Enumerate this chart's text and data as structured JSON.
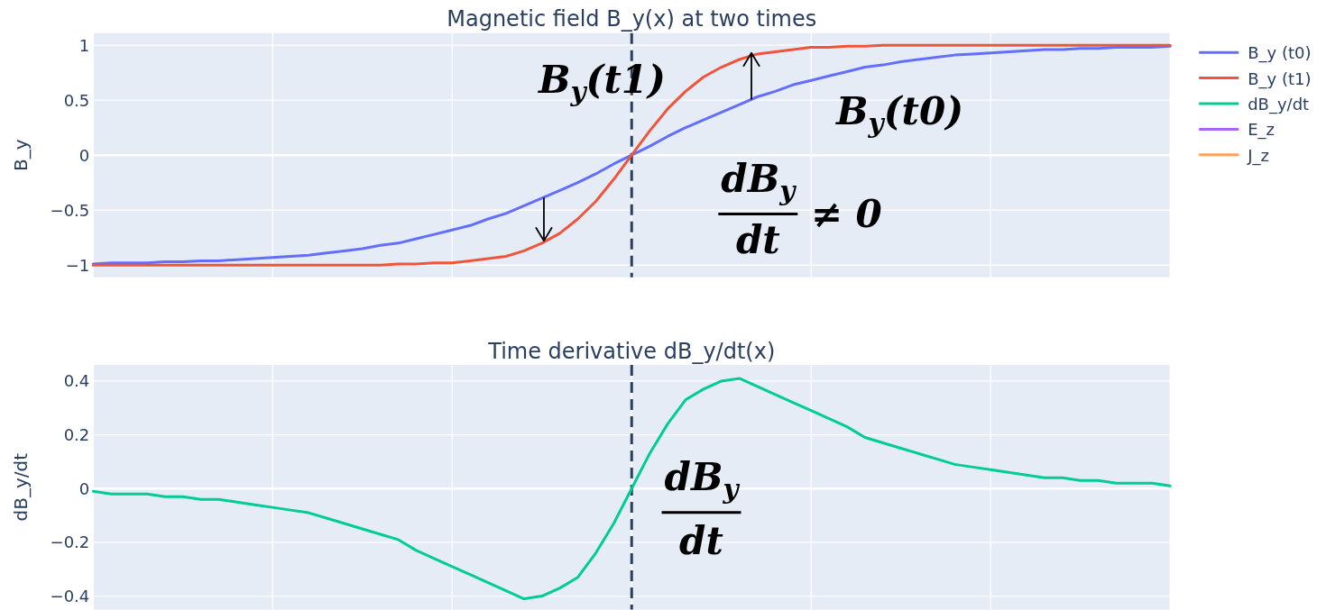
{
  "chart_data": [
    {
      "type": "line",
      "title": "Magnetic field B_y(x) at two times",
      "ylabel": "B_y",
      "categories": [
        null,
        null,
        null,
        null,
        null,
        null,
        null,
        null,
        null,
        null,
        null,
        null,
        null,
        null,
        null,
        null,
        null,
        null,
        null,
        null,
        null,
        null,
        null,
        null,
        null,
        null,
        null,
        null,
        null,
        null,
        null,
        null,
        null,
        null,
        null,
        null,
        null,
        null,
        null,
        null,
        null,
        null,
        null,
        null,
        null,
        null,
        null,
        null,
        null,
        null,
        null,
        null,
        null,
        null,
        null,
        null,
        null,
        null,
        null,
        null,
        null
      ],
      "series": [
        {
          "name": "B_y (t0)",
          "color": "#636efa",
          "values": [
            -0.99,
            -0.98,
            -0.98,
            -0.98,
            -0.97,
            -0.97,
            -0.96,
            -0.96,
            -0.95,
            -0.94,
            -0.93,
            -0.92,
            -0.91,
            -0.89,
            -0.87,
            -0.85,
            -0.82,
            -0.8,
            -0.76,
            -0.72,
            -0.68,
            -0.64,
            -0.58,
            -0.53,
            -0.46,
            -0.39,
            -0.32,
            -0.25,
            -0.17,
            -0.08,
            0,
            0.08,
            0.17,
            0.25,
            0.32,
            0.39,
            0.46,
            0.53,
            0.58,
            0.64,
            0.68,
            0.72,
            0.76,
            0.8,
            0.82,
            0.85,
            0.87,
            0.89,
            0.91,
            0.92,
            0.93,
            0.94,
            0.95,
            0.96,
            0.96,
            0.97,
            0.97,
            0.98,
            0.98,
            0.98,
            0.99
          ]
        },
        {
          "name": "B_y (t1)",
          "color": "#ef553b",
          "values": [
            -1,
            -1,
            -1,
            -1,
            -1,
            -1,
            -1,
            -1,
            -1,
            -1,
            -1,
            -1,
            -1,
            -1,
            -1,
            -1,
            -1,
            -0.99,
            -0.99,
            -0.98,
            -0.98,
            -0.96,
            -0.94,
            -0.92,
            -0.87,
            -0.8,
            -0.71,
            -0.58,
            -0.42,
            -0.22,
            0,
            0.22,
            0.42,
            0.58,
            0.71,
            0.8,
            0.87,
            0.92,
            0.94,
            0.96,
            0.98,
            0.98,
            0.99,
            0.99,
            1,
            1,
            1,
            1,
            1,
            1,
            1,
            1,
            1,
            1,
            1,
            1,
            1,
            1,
            1,
            1,
            1
          ]
        }
      ],
      "ylim": [
        -1.11,
        1.11
      ],
      "yticks": [
        -1,
        -0.5,
        0,
        0.5,
        1
      ],
      "grid": true,
      "legend": "top right",
      "tick_labels": "y",
      "ref_lines": [
        {
          "axis": "x",
          "color": "#2a3f5f",
          "line_style": "dashed"
        }
      ],
      "annotations": [
        "B$_{y}$(t1)",
        "B$_{y}$(t0)",
        "dB$_{y}$",
        "dt",
        "≠ 0"
      ]
    },
    {
      "type": "line",
      "title": "Time derivative dB_y/dt(x)",
      "ylabel": "dB_y/dt",
      "categories": [
        null,
        null,
        null,
        null,
        null,
        null,
        null,
        null,
        null,
        null,
        null,
        null,
        null,
        null,
        null,
        null,
        null,
        null,
        null,
        null,
        null,
        null,
        null,
        null,
        null,
        null,
        null,
        null,
        null,
        null,
        null,
        null,
        null,
        null,
        null,
        null,
        null,
        null,
        null,
        null,
        null,
        null,
        null,
        null,
        null,
        null,
        null,
        null,
        null,
        null,
        null,
        null,
        null,
        null,
        null,
        null,
        null,
        null,
        null,
        null,
        null
      ],
      "series": [
        {
          "name": "dB_y/dt",
          "color": "#00cc96",
          "values": [
            -0.01,
            -0.02,
            -0.02,
            -0.02,
            -0.03,
            -0.03,
            -0.04,
            -0.04,
            -0.05,
            -0.06,
            -0.07,
            -0.08,
            -0.09,
            -0.11,
            -0.13,
            -0.15,
            -0.17,
            -0.19,
            -0.23,
            -0.26,
            -0.29,
            -0.32,
            -0.35,
            -0.38,
            -0.41,
            -0.4,
            -0.37,
            -0.33,
            -0.24,
            -0.13,
            0,
            0.13,
            0.24,
            0.33,
            0.37,
            0.4,
            0.41,
            0.38,
            0.35,
            0.32,
            0.29,
            0.26,
            0.23,
            0.19,
            0.17,
            0.15,
            0.13,
            0.11,
            0.09,
            0.08,
            0.07,
            0.06,
            0.05,
            0.04,
            0.04,
            0.03,
            0.03,
            0.02,
            0.02,
            0.02,
            0.01
          ]
        },
        {
          "name": "E_z",
          "color": "#ab63fa",
          "values": [
            null,
            null,
            null,
            null,
            null,
            null,
            null,
            null,
            null,
            null,
            null,
            null,
            null,
            null,
            null,
            null,
            null,
            null,
            null,
            null,
            null,
            null,
            null,
            null,
            null,
            null,
            null,
            null,
            null,
            null,
            null,
            null,
            null,
            null,
            null,
            null,
            null,
            null,
            null,
            null,
            null,
            null,
            null,
            null,
            null,
            null,
            null,
            null,
            null,
            null,
            null,
            null,
            null,
            null,
            null,
            null,
            null,
            null,
            null,
            null,
            null
          ]
        },
        {
          "name": "J_z",
          "color": "#ffa15a",
          "values": [
            null,
            null,
            null,
            null,
            null,
            null,
            null,
            null,
            null,
            null,
            null,
            null,
            null,
            null,
            null,
            null,
            null,
            null,
            null,
            null,
            null,
            null,
            null,
            null,
            null,
            null,
            null,
            null,
            null,
            null,
            null,
            null,
            null,
            null,
            null,
            null,
            null,
            null,
            null,
            null,
            null,
            null,
            null,
            null,
            null,
            null,
            null,
            null,
            null,
            null,
            null,
            null,
            null,
            null,
            null,
            null,
            null,
            null,
            null,
            null,
            null
          ]
        }
      ],
      "ylim": [
        -0.45,
        0.46
      ],
      "yticks": [
        -0.4,
        -0.2,
        0,
        0.2,
        0.4
      ],
      "grid": true,
      "legend": "top right",
      "tick_labels": "y",
      "ref_lines": [
        {
          "axis": "x",
          "color": "#2a3f5f",
          "line_style": "dashed"
        }
      ],
      "annotations": [
        "dB$_{y}$",
        "dt"
      ]
    }
  ]
}
